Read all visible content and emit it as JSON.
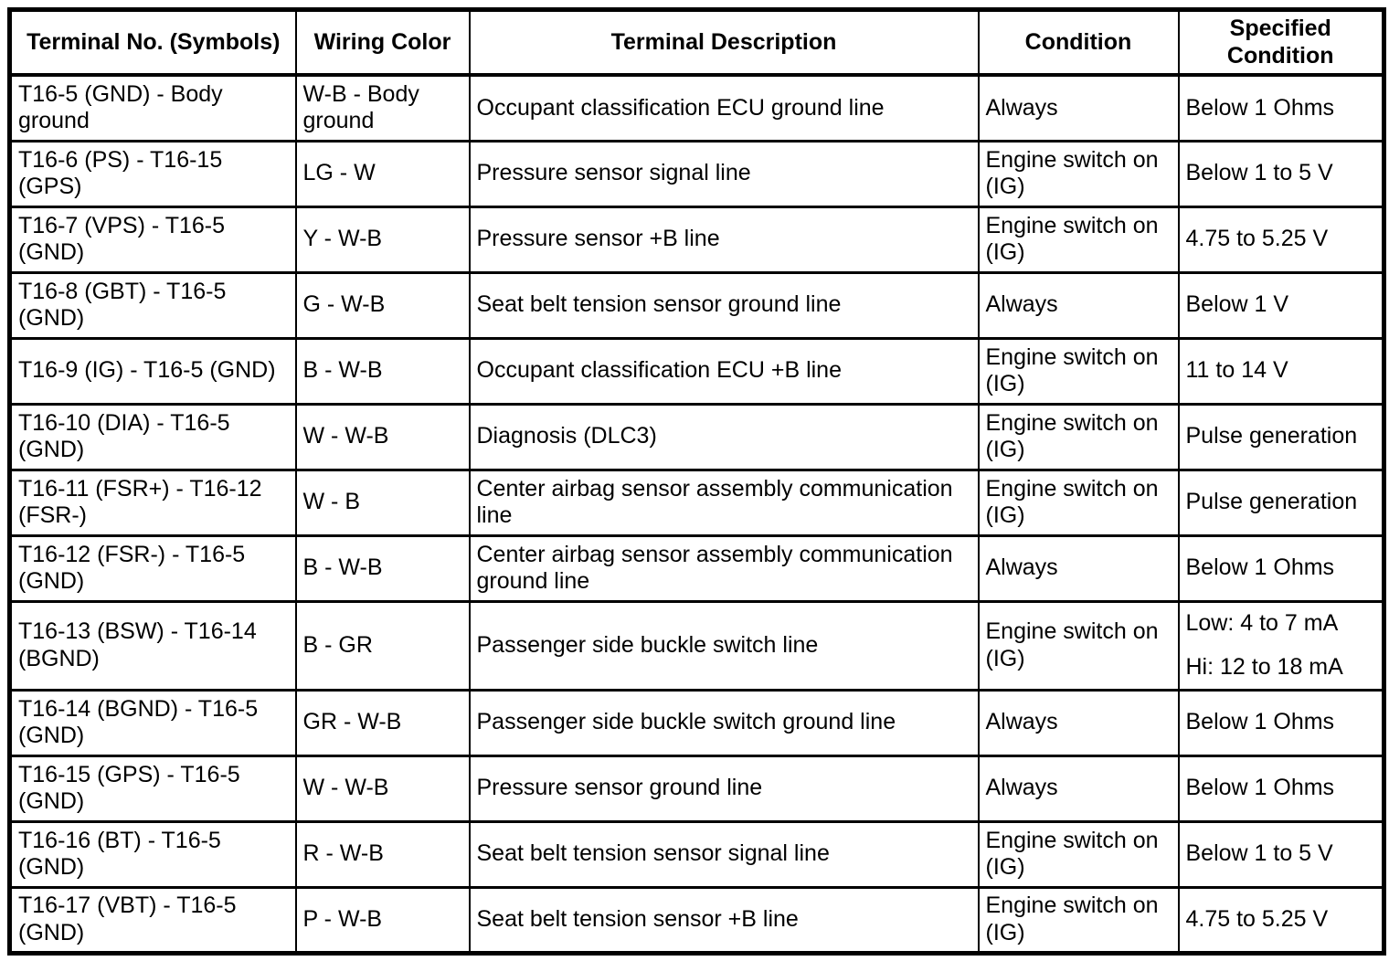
{
  "table": {
    "headers": [
      "Terminal No. (Symbols)",
      "Wiring Color",
      "Terminal Description",
      "Condition",
      "Specified Condition"
    ],
    "rows": [
      {
        "terminal": "T16-5 (GND) - Body ground",
        "wiring": "W-B - Body ground",
        "description": "Occupant classification ECU ground line",
        "condition": "Always",
        "specified": "Below 1 Ohms"
      },
      {
        "terminal": "T16-6 (PS) - T16-15 (GPS)",
        "wiring": "LG - W",
        "description": "Pressure sensor signal line",
        "condition": "Engine switch on (IG)",
        "specified": "Below 1 to 5 V"
      },
      {
        "terminal": "T16-7 (VPS) - T16-5 (GND)",
        "wiring": "Y - W-B",
        "description": "Pressure sensor +B line",
        "condition": "Engine switch on (IG)",
        "specified": "4.75 to 5.25 V"
      },
      {
        "terminal": "T16-8 (GBT) - T16-5 (GND)",
        "wiring": "G - W-B",
        "description": "Seat belt tension sensor ground line",
        "condition": "Always",
        "specified": "Below 1 V"
      },
      {
        "terminal": "T16-9 (IG) - T16-5 (GND)",
        "wiring": "B - W-B",
        "description": "Occupant classification ECU +B line",
        "condition": "Engine switch on (IG)",
        "specified": "11 to 14 V"
      },
      {
        "terminal": "T16-10 (DIA) - T16-5 (GND)",
        "wiring": "W - W-B",
        "description": "Diagnosis (DLC3)",
        "condition": "Engine switch on (IG)",
        "specified": "Pulse generation"
      },
      {
        "terminal": "T16-11 (FSR+) - T16-12 (FSR-)",
        "wiring": "W - B",
        "description": "Center airbag sensor assembly communication line",
        "condition": "Engine switch on (IG)",
        "specified": "Pulse generation"
      },
      {
        "terminal": "T16-12 (FSR-) - T16-5 (GND)",
        "wiring": "B - W-B",
        "description": "Center airbag sensor assembly communication ground line",
        "condition": "Always",
        "specified": "Below 1 Ohms"
      },
      {
        "terminal": "T16-13 (BSW) - T16-14 (BGND)",
        "wiring": "B - GR",
        "description": "Passenger side buckle switch line",
        "condition": "Engine switch on (IG)",
        "specified_lines": [
          "Low: 4 to 7 mA",
          "Hi: 12 to 18 mA"
        ]
      },
      {
        "terminal": "T16-14 (BGND) - T16-5 (GND)",
        "wiring": "GR - W-B",
        "description": "Passenger side buckle switch ground line",
        "condition": "Always",
        "specified": "Below 1 Ohms"
      },
      {
        "terminal": "T16-15 (GPS) - T16-5 (GND)",
        "wiring": "W - W-B",
        "description": "Pressure sensor ground line",
        "condition": "Always",
        "specified": "Below 1 Ohms"
      },
      {
        "terminal": "T16-16 (BT) - T16-5 (GND)",
        "wiring": "R - W-B",
        "description": "Seat belt tension sensor signal line",
        "condition": "Engine switch on (IG)",
        "specified": "Below 1 to 5 V"
      },
      {
        "terminal": "T16-17 (VBT) - T16-5 (GND)",
        "wiring": "P - W-B",
        "description": "Seat belt tension sensor +B line",
        "condition": "Engine switch on (IG)",
        "specified": "4.75 to 5.25 V"
      }
    ]
  }
}
